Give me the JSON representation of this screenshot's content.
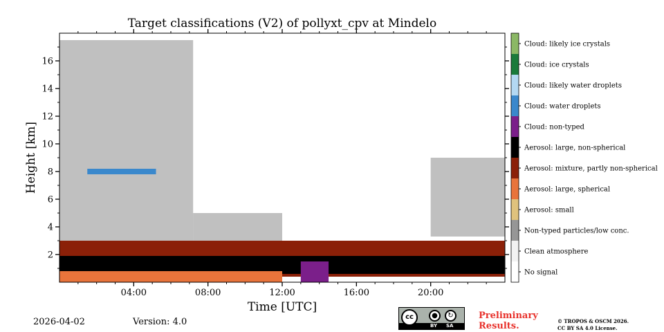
{
  "chart_data": {
    "type": "heatmap",
    "title": "Target classifications (V2) of pollyxt_cpv at Mindelo",
    "xlabel": "Time [UTC]",
    "ylabel": "Height [km]",
    "xlim": [
      0,
      24
    ],
    "ylim": [
      0,
      18
    ],
    "x_ticks": [
      {
        "value": 4,
        "label": "04:00"
      },
      {
        "value": 8,
        "label": "08:00"
      },
      {
        "value": 12,
        "label": "12:00"
      },
      {
        "value": 16,
        "label": "16:00"
      },
      {
        "value": 20,
        "label": "20:00"
      }
    ],
    "y_ticks": [
      {
        "value": 2,
        "label": "2"
      },
      {
        "value": 4,
        "label": "4"
      },
      {
        "value": 6,
        "label": "6"
      },
      {
        "value": 8,
        "label": "8"
      },
      {
        "value": 10,
        "label": "10"
      },
      {
        "value": 12,
        "label": "12"
      },
      {
        "value": 14,
        "label": "14"
      },
      {
        "value": 16,
        "label": "16"
      }
    ],
    "legend": [
      {
        "label": "No signal",
        "color": "#ffffff"
      },
      {
        "label": "Clean atmosphere",
        "color": "#f2f2f2"
      },
      {
        "label": "Non-typed particles/low conc.",
        "color": "#969696"
      },
      {
        "label": "Aerosol: small",
        "color": "#dfc27d"
      },
      {
        "label": "Aerosol: large, spherical",
        "color": "#e8743b"
      },
      {
        "label": "Aerosol: mixture, partly non-spherical",
        "color": "#8b2008"
      },
      {
        "label": "Aerosol: large, non-spherical",
        "color": "#000000"
      },
      {
        "label": "Cloud: non-typed",
        "color": "#7b1f8a"
      },
      {
        "label": "Cloud: water droplets",
        "color": "#3a88cc"
      },
      {
        "label": "Cloud: likely water droplets",
        "color": "#b3d8f2"
      },
      {
        "label": "Cloud: ice crystals",
        "color": "#1a7a3a"
      },
      {
        "label": "Cloud: likely ice crystals",
        "color": "#8bb865"
      }
    ],
    "layers": [
      {
        "class": "Non-typed particles/low conc.",
        "x_start": 0,
        "x_end": 7.2,
        "y_bottom": 2.8,
        "y_top": 17.5
      },
      {
        "class": "Non-typed particles/low conc.",
        "x_start": 7.2,
        "x_end": 12,
        "y_bottom": 2.6,
        "y_top": 5
      },
      {
        "class": "Non-typed particles/low conc.",
        "x_start": 20,
        "x_end": 24,
        "y_bottom": 3.3,
        "y_top": 9
      },
      {
        "class": "Aerosol: mixture, partly non-spherical",
        "x_start": 0,
        "x_end": 24,
        "y_bottom": 0.4,
        "y_top": 3
      },
      {
        "class": "Aerosol: large, non-spherical",
        "x_start": 0,
        "x_end": 24,
        "y_bottom": 0.6,
        "y_top": 1.9
      },
      {
        "class": "Aerosol: large, spherical",
        "x_start": 0,
        "x_end": 12,
        "y_bottom": 0,
        "y_top": 0.8
      },
      {
        "class": "Cloud: water droplets",
        "x_start": 1.5,
        "x_end": 5.2,
        "y_bottom": 7.8,
        "y_top": 8.2
      },
      {
        "class": "Cloud: non-typed",
        "x_start": 13,
        "x_end": 14.5,
        "y_bottom": 0,
        "y_top": 1.5
      }
    ]
  },
  "footer": {
    "date": "2026-04-02",
    "version": "Version: 4.0",
    "preliminary_line1": "Preliminary",
    "preliminary_line2": "Results.",
    "copyright_line1": "© TROPOS & OSCM 2026.",
    "copyright_line2": "CC BY SA 4.0 License.",
    "cc_badge": {
      "main": "cc",
      "by": "BY",
      "sa": "SA"
    }
  }
}
